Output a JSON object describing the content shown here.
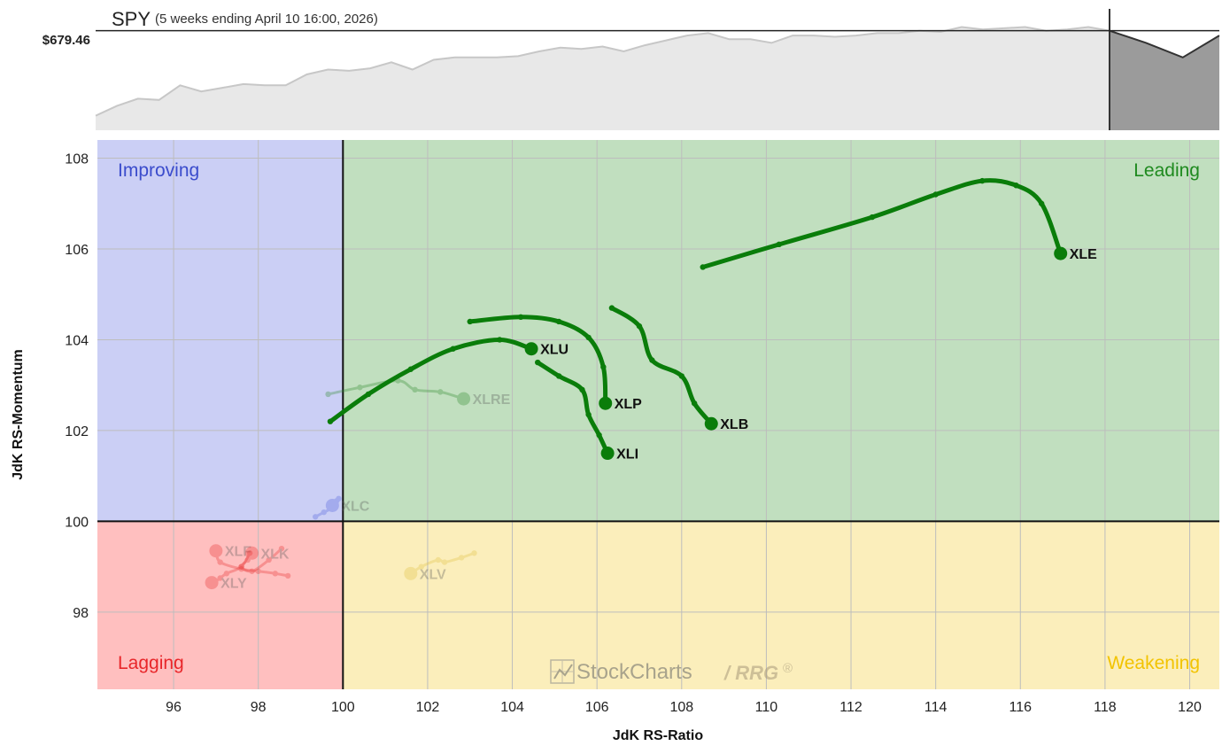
{
  "header": {
    "symbol": "SPY",
    "period": "(5 weeks ending April 10 16:00, 2026)",
    "price_label": "$679.46"
  },
  "watermark": {
    "brand": "StockCharts",
    "product": "/ RRG",
    "reg": "®"
  },
  "chart_data": {
    "type": "scatter",
    "subtype": "relative-rotation-graph",
    "xlabel": "JdK RS-Ratio",
    "ylabel": "JdK RS-Momentum",
    "xlim": [
      94.2,
      120.7
    ],
    "ylim": [
      96.3,
      108.4
    ],
    "xticks": [
      96,
      98,
      100,
      102,
      104,
      106,
      108,
      110,
      112,
      114,
      116,
      118,
      120
    ],
    "yticks": [
      98,
      100,
      102,
      104,
      106,
      108
    ],
    "center": [
      100,
      100
    ],
    "grid": true,
    "quadrants": [
      {
        "name": "Improving",
        "color": "#cbcff5",
        "label_color": "#3b4ccc",
        "position": "top-left"
      },
      {
        "name": "Leading",
        "color": "#c1dfbf",
        "label_color": "#1f8a1f",
        "position": "top-right"
      },
      {
        "name": "Lagging",
        "color": "#ffbfbf",
        "label_color": "#e8262a",
        "position": "bottom-left"
      },
      {
        "name": "Weakening",
        "color": "#fbeebb",
        "label_color": "#f2c300",
        "position": "bottom-right"
      }
    ],
    "series": [
      {
        "name": "XLE",
        "color": "#0a7d0a",
        "faded": false,
        "label_side": "right",
        "points": [
          [
            108.5,
            105.6
          ],
          [
            110.3,
            106.1
          ],
          [
            112.5,
            106.7
          ],
          [
            114,
            107.2
          ],
          [
            115.1,
            107.5
          ],
          [
            115.9,
            107.4
          ],
          [
            116.5,
            107.0
          ],
          [
            116.95,
            105.9
          ]
        ]
      },
      {
        "name": "XLU",
        "color": "#0a7d0a",
        "faded": false,
        "label_side": "right",
        "points": [
          [
            99.7,
            102.2
          ],
          [
            100.6,
            102.8
          ],
          [
            101.6,
            103.35
          ],
          [
            102.6,
            103.8
          ],
          [
            103.7,
            104.0
          ],
          [
            104.45,
            103.8
          ]
        ]
      },
      {
        "name": "XLP",
        "color": "#0a7d0a",
        "faded": false,
        "label_side": "right",
        "points": [
          [
            103.0,
            104.4
          ],
          [
            104.2,
            104.5
          ],
          [
            105.1,
            104.4
          ],
          [
            105.8,
            104.05
          ],
          [
            106.15,
            103.4
          ],
          [
            106.2,
            102.6
          ]
        ]
      },
      {
        "name": "XLI",
        "color": "#0a7d0a",
        "faded": false,
        "label_side": "right",
        "points": [
          [
            104.6,
            103.5
          ],
          [
            105.1,
            103.2
          ],
          [
            105.65,
            102.9
          ],
          [
            105.8,
            102.35
          ],
          [
            106.05,
            101.9
          ],
          [
            106.25,
            101.5
          ]
        ]
      },
      {
        "name": "XLB",
        "color": "#0a7d0a",
        "faded": false,
        "label_side": "right",
        "points": [
          [
            106.35,
            104.7
          ],
          [
            107.0,
            104.3
          ],
          [
            107.3,
            103.55
          ],
          [
            108.0,
            103.2
          ],
          [
            108.3,
            102.6
          ],
          [
            108.7,
            102.15
          ]
        ]
      },
      {
        "name": "XLRE",
        "color": "#2e8b2e",
        "faded": true,
        "label_side": "right",
        "points": [
          [
            99.65,
            102.8
          ],
          [
            100.4,
            102.95
          ],
          [
            101.3,
            103.1
          ],
          [
            101.7,
            102.9
          ],
          [
            102.3,
            102.85
          ],
          [
            102.85,
            102.7
          ]
        ]
      },
      {
        "name": "XLC",
        "color": "#5060dd",
        "faded": true,
        "label_side": "right",
        "points": [
          [
            99.35,
            100.1
          ],
          [
            99.55,
            100.2
          ],
          [
            99.75,
            100.3
          ],
          [
            99.85,
            100.45
          ],
          [
            99.9,
            100.5
          ],
          [
            99.75,
            100.35
          ]
        ]
      },
      {
        "name": "XLV",
        "color": "#e0c040",
        "faded": true,
        "label_side": "right",
        "points": [
          [
            103.1,
            99.3
          ],
          [
            102.8,
            99.2
          ],
          [
            102.4,
            99.1
          ],
          [
            102.25,
            99.15
          ],
          [
            101.85,
            99.0
          ],
          [
            101.6,
            98.85
          ]
        ]
      },
      {
        "name": "XLF",
        "color": "#e83030",
        "faded": true,
        "label_side": "right",
        "points": [
          [
            98.7,
            98.8
          ],
          [
            98.4,
            98.85
          ],
          [
            98.0,
            98.9
          ],
          [
            97.6,
            98.95
          ],
          [
            97.1,
            99.1
          ],
          [
            97.0,
            99.35
          ]
        ]
      },
      {
        "name": "XLK",
        "color": "#e83030",
        "faded": true,
        "label_side": "right",
        "points": [
          [
            98.55,
            99.4
          ],
          [
            98.25,
            99.15
          ],
          [
            97.85,
            98.9
          ],
          [
            97.6,
            99.0
          ],
          [
            97.75,
            99.15
          ],
          [
            97.85,
            99.3
          ]
        ]
      },
      {
        "name": "XLY",
        "color": "#e83030",
        "faded": true,
        "label_side": "right",
        "points": [
          [
            97.8,
            99.3
          ],
          [
            97.6,
            99.0
          ],
          [
            97.25,
            98.85
          ],
          [
            97.1,
            98.75
          ],
          [
            96.95,
            98.65
          ],
          [
            96.9,
            98.65
          ]
        ]
      }
    ],
    "benchmark": {
      "name": "SPY",
      "last_value": 679.46,
      "values": [
        0.12,
        0.2,
        0.26,
        0.25,
        0.37,
        0.32,
        0.35,
        0.38,
        0.37,
        0.37,
        0.46,
        0.5,
        0.49,
        0.51,
        0.56,
        0.5,
        0.58,
        0.6,
        0.6,
        0.6,
        0.61,
        0.65,
        0.68,
        0.67,
        0.69,
        0.65,
        0.7,
        0.74,
        0.78,
        0.8,
        0.75,
        0.75,
        0.72,
        0.78,
        0.78,
        0.77,
        0.78,
        0.8,
        0.8,
        0.82,
        0.81,
        0.85,
        0.83,
        0.84,
        0.85,
        0.82,
        0.83,
        0.85,
        0.82
      ],
      "projection": [
        0.82,
        0.72,
        0.6,
        0.78
      ]
    }
  }
}
